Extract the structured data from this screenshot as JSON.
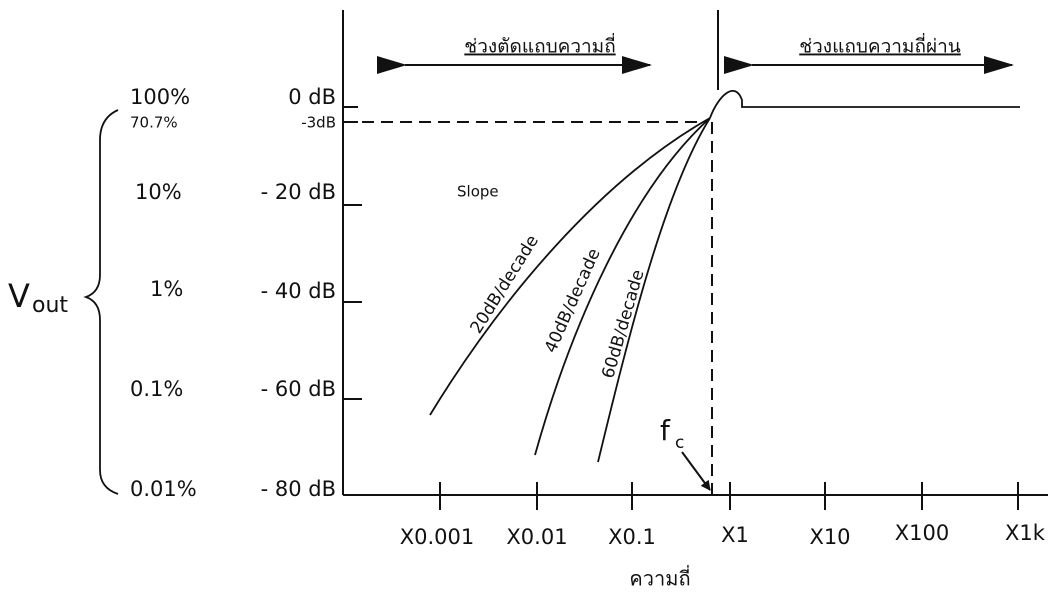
{
  "header": {
    "stopband": "ช่วงตัดแถบความถี่",
    "passband": "ช่วงแถบความถี่ผ่าน"
  },
  "percent_labels": [
    "100%",
    "70.7%",
    "10%",
    "1%",
    "0.1%",
    "0.01%"
  ],
  "db_labels": [
    "0 dB",
    "-3dB",
    "- 20 dB",
    "- 40 dB",
    "- 60 dB",
    "- 80 dB"
  ],
  "vout": {
    "main": "V",
    "sub": "out"
  },
  "slope": {
    "title": "Slope",
    "curves": [
      "20dB/decade",
      "40dB/decade",
      "60dB/decade"
    ]
  },
  "cutoff": {
    "main": "f",
    "sub": "c"
  },
  "x_labels": [
    "X0.001",
    "X0.01",
    "X0.1",
    "X1",
    "X10",
    "X100",
    "X1k"
  ],
  "x_title": "ความถี่"
}
